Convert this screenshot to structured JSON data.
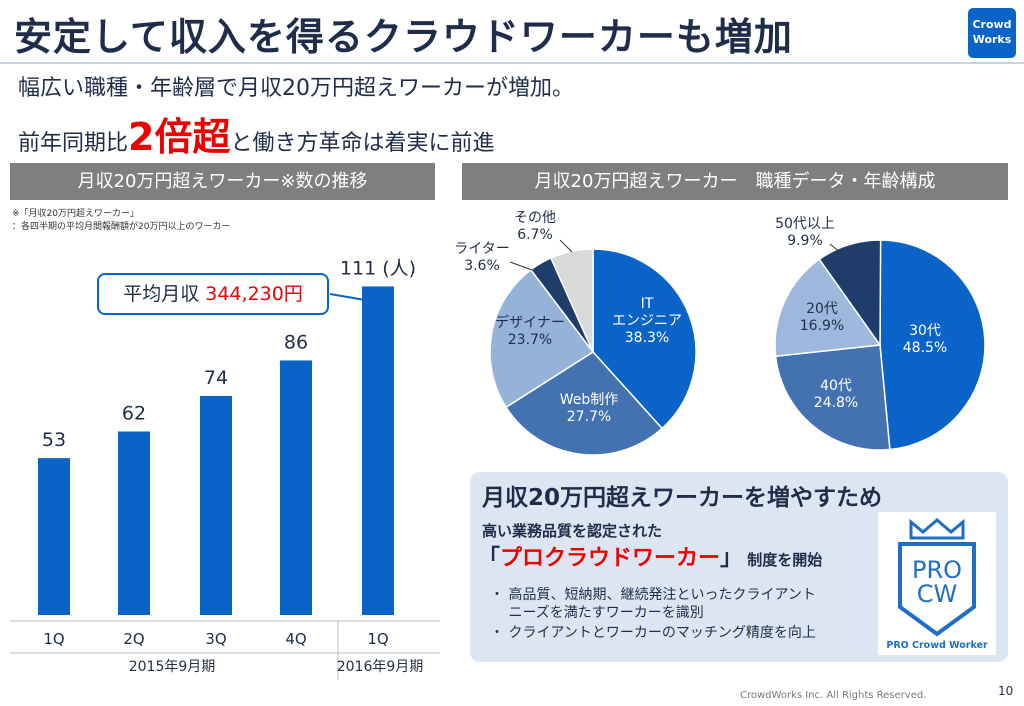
{
  "title": "安定して収入を得るクラウドワーカーも増加",
  "logo": {
    "line1": "Crowd",
    "line2": "Works",
    "color": "#0a64c8"
  },
  "subtitle1": "幅広い職種・年齢層で月収20万円超えワーカーが増加。",
  "subtitle2": {
    "pre": "前年同期比",
    "highlight": "2倍超",
    "post": "と働き方革命は着実に前進"
  },
  "left_header": "月収20万円超えワーカー※数の推移",
  "right_header": "月収20万円超えワーカー　職種データ・年齢構成",
  "note": {
    "line1": "※「月収20万円超えワーカー」",
    "line2": "：各四半期の平均月間報酬額が20万円以上のワーカー"
  },
  "callout": {
    "label": "平均月収 ",
    "value": "344,230円"
  },
  "chart_data": [
    {
      "type": "bar",
      "categories": [
        "1Q",
        "2Q",
        "3Q",
        "4Q",
        "1Q"
      ],
      "values": [
        53,
        62,
        74,
        86,
        111
      ],
      "unit": "(人)",
      "groups": [
        {
          "label": "2015年9月期",
          "span": 4
        },
        {
          "label": "2016年9月期",
          "span": 1
        }
      ],
      "color": "#0a64c8"
    },
    {
      "type": "pie",
      "slices": [
        {
          "label": "IT\nエンジニア",
          "value": 38.3,
          "display": "38.3%",
          "color": "#0a64c8"
        },
        {
          "label": "Web制作",
          "value": 27.7,
          "display": "27.7%",
          "color": "#4472b0"
        },
        {
          "label": "デザイナー",
          "value": 23.7,
          "display": "23.7%",
          "color": "#95b3d9"
        },
        {
          "label": "ライター",
          "value": 3.6,
          "display": "3.6%",
          "color": "#1f3d6b"
        },
        {
          "label": "その他",
          "value": 6.7,
          "display": "6.7%",
          "color": "#d9d9d9"
        }
      ]
    },
    {
      "type": "pie",
      "slices": [
        {
          "label": "30代",
          "value": 48.5,
          "display": "48.5%",
          "color": "#0a64c8"
        },
        {
          "label": "40代",
          "value": 24.8,
          "display": "24.8%",
          "color": "#4472b0"
        },
        {
          "label": "20代",
          "value": 16.9,
          "display": "16.9%",
          "color": "#9db8dc"
        },
        {
          "label": "50代以上",
          "value": 9.9,
          "display": "9.9%",
          "color": "#1f3d6b"
        }
      ]
    }
  ],
  "panel": {
    "title": "月収20万円超えワーカーを増やすため",
    "line1": "高い業務品質を認定された",
    "bracket_open": "「",
    "program": "プロクラウドワーカー",
    "bracket_close": "」",
    "suffix": " 制度を開始",
    "bullets": [
      "・ 高品質、短納期、継続発注といったクライアント",
      "　 ニーズを満たすワーカーを識別",
      "・ クライアントとワーカーのマッチング精度を向上"
    ]
  },
  "pro_logo": {
    "line1": "PRO",
    "line2": "CW",
    "caption": "PRO Crowd Worker"
  },
  "footer": "CrowdWorks Inc. All Rights Reserved.",
  "page_number": "10"
}
